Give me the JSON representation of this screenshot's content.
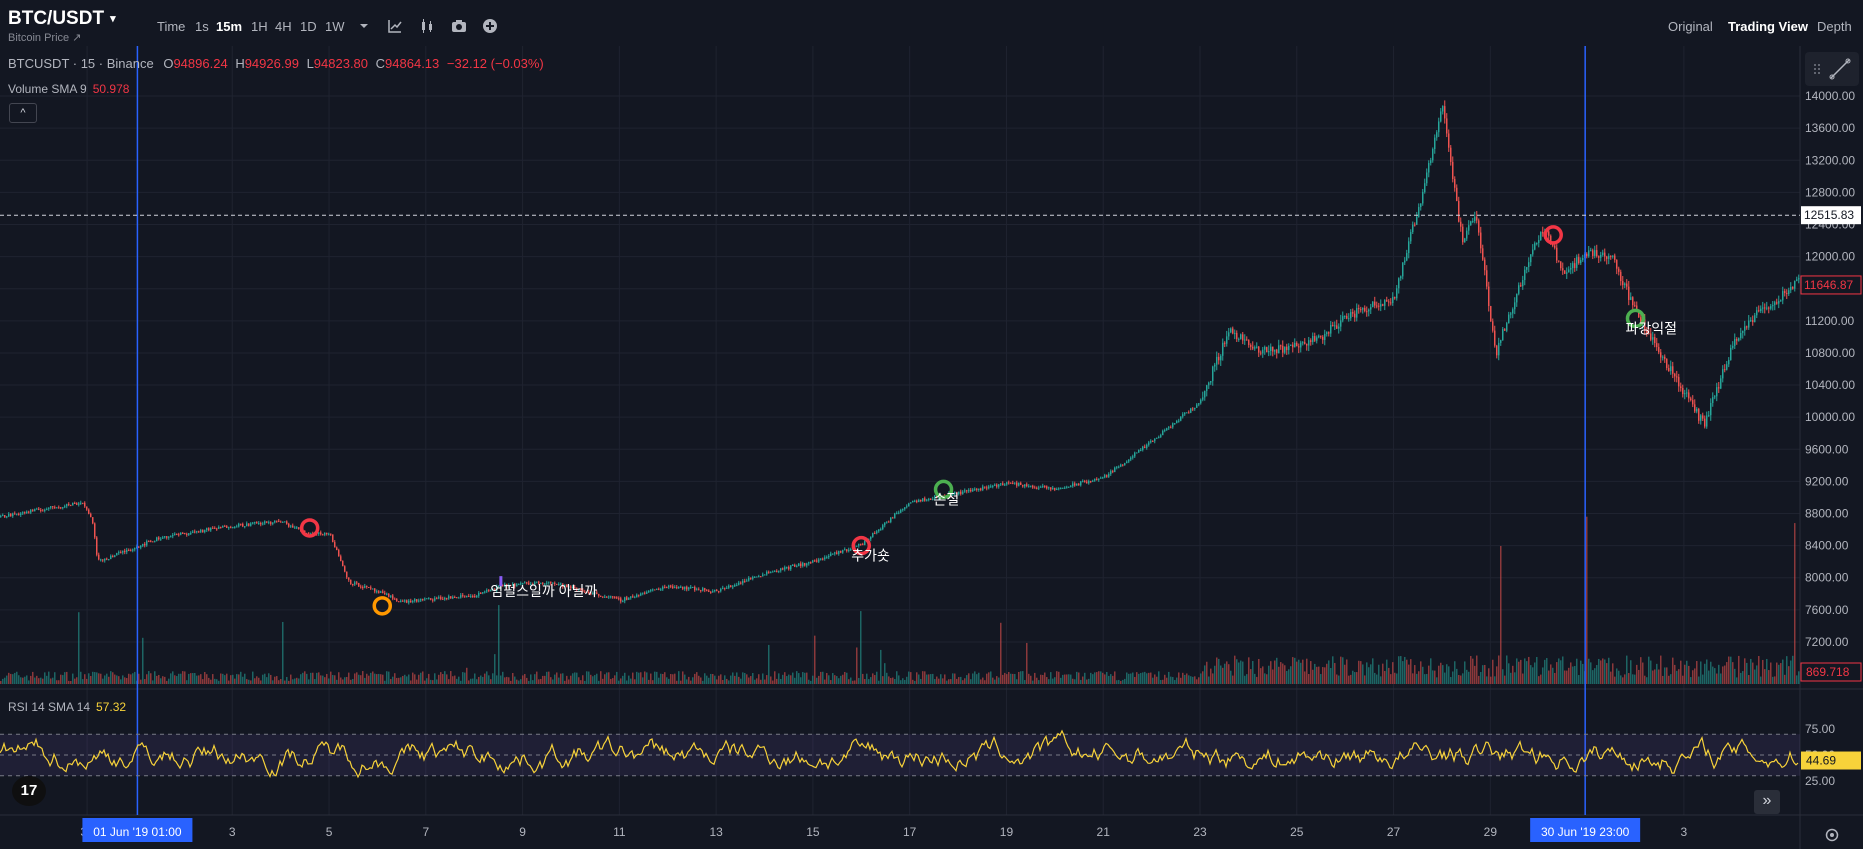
{
  "header": {
    "symbol": "BTC/USDT",
    "symbol_caret": "▾",
    "subtitle": "Bitcoin Price ↗",
    "timeframes": [
      "Time",
      "1s",
      "15m",
      "1H",
      "4H",
      "1D",
      "1W"
    ],
    "active_timeframe": "15m",
    "tool_icons": [
      "chevron-down-icon",
      "indicator-icon",
      "candle-type-icon",
      "camera-icon",
      "add-icon"
    ],
    "views": [
      "Original",
      "Trading View",
      "Depth"
    ],
    "active_view": "Trading View"
  },
  "legend": {
    "name": "BTCUSDT · 15 · Binance",
    "open_label": "O",
    "open": "94896.24",
    "high_label": "H",
    "high": "94926.99",
    "low_label": "L",
    "low": "94823.80",
    "close_label": "C",
    "close": "94864.13",
    "change": "−32.12 (−0.03%)",
    "volume_name": "Volume SMA 9",
    "volume_value": "50.978",
    "collapse": "^"
  },
  "rsi_legend": {
    "name": "RSI 14 SMA 14",
    "value": "57.32"
  },
  "colors": {
    "background": "#131722",
    "up": "#26a69a",
    "down": "#ef5350",
    "rsi_line": "#f7d23a",
    "marker_red": "#f23645",
    "marker_green": "#4caf50",
    "marker_orange": "#ff9800",
    "vertical_line": "#2962ff"
  },
  "chart_data": {
    "type": "candlestick",
    "title": "",
    "price_axis_ticks": [
      "14000.00",
      "13600.00",
      "13200.00",
      "12800.00",
      "12400.00",
      "12000.00",
      "11600.00",
      "11200.00",
      "10800.00",
      "10400.00",
      "10000.00",
      "9600.00",
      "9200.00",
      "8800.00",
      "8400.00",
      "8000.00",
      "7600.00",
      "7200.00"
    ],
    "price_ylim": [
      7000,
      14200
    ],
    "current_price_label": "11646.87",
    "crosshair_price_label": "12515.83",
    "crosshair_price": 12515.83,
    "volume_label": "869.718",
    "x_tick_labels": [
      "30",
      "01 Jun '19  01:00",
      "3",
      "5",
      "7",
      "9",
      "11",
      "13",
      "15",
      "17",
      "19",
      "21",
      "23",
      "25",
      "27",
      "29",
      "30 Jun '19  23:00",
      "3"
    ],
    "x_tick_days": [
      -1,
      0.04,
      2,
      4,
      6,
      8,
      10,
      12,
      14,
      16,
      18,
      20,
      22,
      24,
      26,
      28,
      29.96,
      32
    ],
    "highlighted_x_labels": [
      "01 Jun '19  01:00",
      "30 Jun '19  23:00"
    ],
    "x_range_days": [
      -2.8,
      34.4
    ],
    "price_path": [
      {
        "day": -2.8,
        "price": 8760
      },
      {
        "day": -0.9,
        "price": 8700
      },
      {
        "day": -1.1,
        "price": 8940
      },
      {
        "day": -0.8,
        "price": 8200
      },
      {
        "day": 0.5,
        "price": 8500
      },
      {
        "day": 2.0,
        "price": 8650
      },
      {
        "day": 3.0,
        "price": 8700
      },
      {
        "day": 3.5,
        "price": 8560
      },
      {
        "day": 4.0,
        "price": 8550
      },
      {
        "day": 4.4,
        "price": 7950
      },
      {
        "day": 5.0,
        "price": 7820
      },
      {
        "day": 5.5,
        "price": 7700
      },
      {
        "day": 7.0,
        "price": 7780
      },
      {
        "day": 7.6,
        "price": 7900
      },
      {
        "day": 8.5,
        "price": 7950
      },
      {
        "day": 10.0,
        "price": 7720
      },
      {
        "day": 11.0,
        "price": 7900
      },
      {
        "day": 12.0,
        "price": 7830
      },
      {
        "day": 13.0,
        "price": 8060
      },
      {
        "day": 14.0,
        "price": 8200
      },
      {
        "day": 15.0,
        "price": 8420
      },
      {
        "day": 16.0,
        "price": 8950
      },
      {
        "day": 17.0,
        "price": 9060
      },
      {
        "day": 18.0,
        "price": 9180
      },
      {
        "day": 19.0,
        "price": 9100
      },
      {
        "day": 20.0,
        "price": 9250
      },
      {
        "day": 21.0,
        "price": 9700
      },
      {
        "day": 22.0,
        "price": 10200
      },
      {
        "day": 22.6,
        "price": 11100
      },
      {
        "day": 23.2,
        "price": 10800
      },
      {
        "day": 24.0,
        "price": 10900
      },
      {
        "day": 24.5,
        "price": 11000
      },
      {
        "day": 25.0,
        "price": 11250
      },
      {
        "day": 26.0,
        "price": 11500
      },
      {
        "day": 26.5,
        "price": 12600
      },
      {
        "day": 27.0,
        "price": 13900
      },
      {
        "day": 27.4,
        "price": 12200
      },
      {
        "day": 27.7,
        "price": 12500
      },
      {
        "day": 28.1,
        "price": 10800
      },
      {
        "day": 28.8,
        "price": 12000
      },
      {
        "day": 29.1,
        "price": 12350
      },
      {
        "day": 29.5,
        "price": 11800
      },
      {
        "day": 30.0,
        "price": 12050
      },
      {
        "day": 30.5,
        "price": 12000
      },
      {
        "day": 31.0,
        "price": 11300
      },
      {
        "day": 31.8,
        "price": 10500
      },
      {
        "day": 32.4,
        "price": 9900
      },
      {
        "day": 33.0,
        "price": 10900
      },
      {
        "day": 33.5,
        "price": 11300
      },
      {
        "day": 34.0,
        "price": 11500
      },
      {
        "day": 34.4,
        "price": 11700
      }
    ],
    "annotations": [
      {
        "day": 3.6,
        "price": 8620,
        "color": "red",
        "text": ""
      },
      {
        "day": 5.1,
        "price": 7650,
        "color": "orange",
        "text": ""
      },
      {
        "day": 7.5,
        "price": 7970,
        "color": "",
        "text": "엄펄스일까 아닐까"
      },
      {
        "day": 15.0,
        "price": 8400,
        "color": "red",
        "text": "추가숏"
      },
      {
        "day": 16.7,
        "price": 9100,
        "color": "green",
        "text": "손절"
      },
      {
        "day": 29.3,
        "price": 12270,
        "color": "red",
        "text": ""
      },
      {
        "day": 31.0,
        "price": 11230,
        "color": "green",
        "text": "파강익절"
      }
    ],
    "rsi_axis_ticks": [
      "75.00",
      "50.00",
      "25.00"
    ],
    "rsi_band": [
      30,
      70
    ],
    "rsi_current_label": "44.69"
  }
}
